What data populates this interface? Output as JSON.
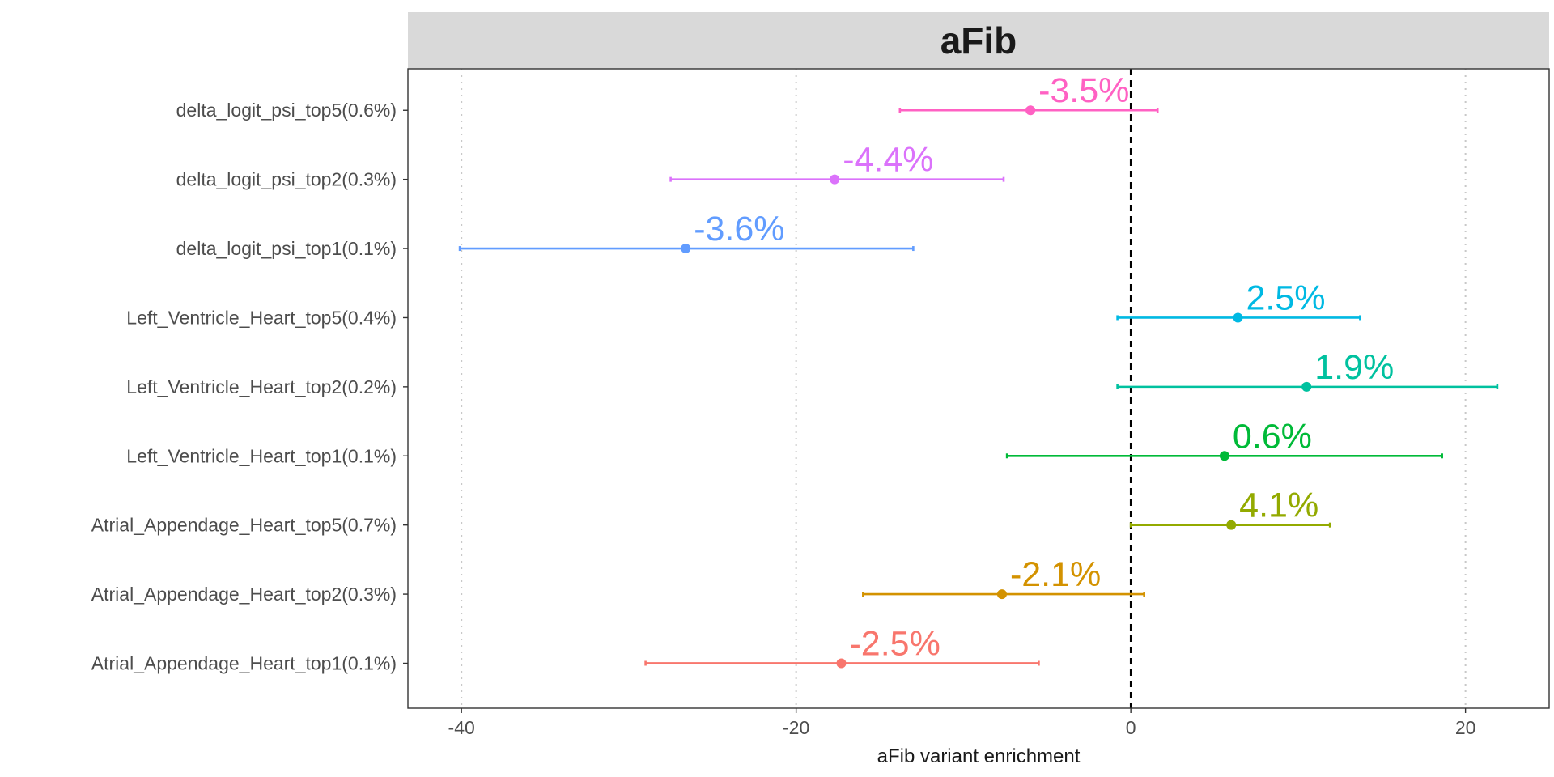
{
  "chart_data": {
    "type": "forest",
    "strip_title": "aFib",
    "xlabel": "aFib variant enrichment",
    "ylabel": "",
    "xlim": [
      -43.2,
      25
    ],
    "x_ticks": [
      -40,
      -20,
      0,
      20
    ],
    "x_tick_labels": [
      "-40",
      "-20",
      "0",
      "20"
    ],
    "vertical_gridlines": [
      -40,
      -20,
      20
    ],
    "reference_line": 0,
    "grid": "dotted vertical at major ticks",
    "legend": "none",
    "categories": [
      "delta_logit_psi_top5(0.6%)",
      "delta_logit_psi_top2(0.3%)",
      "delta_logit_psi_top1(0.1%)",
      "Left_Ventricle_Heart_top5(0.4%)",
      "Left_Ventricle_Heart_top2(0.2%)",
      "Left_Ventricle_Heart_top1(0.1%)",
      "Atrial_Appendage_Heart_top5(0.7%)",
      "Atrial_Appendage_Heart_top2(0.3%)",
      "Atrial_Appendage_Heart_top1(0.1%)"
    ],
    "estimates": [
      -6.0,
      -17.7,
      -26.6,
      6.4,
      10.5,
      5.6,
      6.0,
      -7.7,
      -17.3
    ],
    "ci_low": [
      -13.8,
      -27.5,
      -40.1,
      -0.8,
      -0.8,
      -7.4,
      0.0,
      -16.0,
      -29.0
    ],
    "ci_high": [
      1.6,
      -7.6,
      -13.0,
      13.7,
      21.9,
      18.6,
      11.9,
      0.8,
      -5.5
    ],
    "labels": [
      "-3.5%",
      "-4.4%",
      "-3.6%",
      "2.5%",
      "1.9%",
      "0.6%",
      "4.1%",
      "-2.1%",
      "-2.5%"
    ],
    "colors": [
      "#FF61C3",
      "#DB72FB",
      "#619CFF",
      "#00B9E3",
      "#00C19F",
      "#00BA38",
      "#93AA00",
      "#D39200",
      "#F8766D"
    ]
  }
}
